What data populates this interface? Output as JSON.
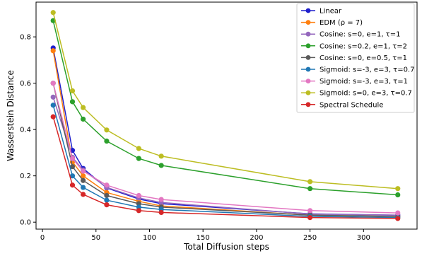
{
  "chart_data": {
    "type": "line",
    "title": "",
    "xlabel": "Total Diffusion steps",
    "ylabel": "Wasserstein Distance",
    "xlim": [
      -6,
      350
    ],
    "ylim": [
      -0.03,
      0.95
    ],
    "xticks": [
      0,
      50,
      100,
      150,
      200,
      250,
      300
    ],
    "yticks": [
      0.0,
      0.2,
      0.4,
      0.6,
      0.8
    ],
    "xtick_labels": [
      "0",
      "50",
      "100",
      "150",
      "200",
      "250",
      "300"
    ],
    "ytick_labels": [
      "0.0",
      "0.2",
      "0.4",
      "0.6",
      "0.8"
    ],
    "grid": false,
    "legend_position": "top-right",
    "series": [
      {
        "name": "Linear",
        "color": "#1f1fcc",
        "x": [
          10,
          28,
          38,
          60,
          90,
          111,
          250,
          332
        ],
        "y": [
          0.752,
          0.31,
          0.232,
          0.148,
          0.1,
          0.08,
          0.036,
          0.03
        ]
      },
      {
        "name": "EDM (ρ = 7)",
        "color": "#ff7f0e",
        "x": [
          10,
          28,
          38,
          60,
          90,
          111,
          250,
          332
        ],
        "y": [
          0.74,
          0.26,
          0.2,
          0.128,
          0.09,
          0.07,
          0.03,
          0.025
        ]
      },
      {
        "name": "Cosine: s=0, e=1, τ=1",
        "color": "#9467bd",
        "x": [
          10,
          28,
          38,
          60,
          90,
          111,
          250,
          332
        ],
        "y": [
          0.54,
          0.28,
          0.225,
          0.15,
          0.105,
          0.085,
          0.035,
          0.03
        ]
      },
      {
        "name": "Cosine: s=0.2, e=1, τ=2",
        "color": "#2ca02c",
        "x": [
          10,
          28,
          38,
          60,
          90,
          111,
          250,
          332
        ],
        "y": [
          0.87,
          0.52,
          0.445,
          0.35,
          0.275,
          0.245,
          0.145,
          0.118
        ]
      },
      {
        "name": "Cosine: s=0, e=0.5, τ=1",
        "color": "#5a5a5a",
        "x": [
          10,
          28,
          38,
          60,
          90,
          111,
          250,
          332
        ],
        "y": [
          0.6,
          0.24,
          0.18,
          0.115,
          0.08,
          0.065,
          0.03,
          0.025
        ]
      },
      {
        "name": "Sigmoid: s=-3, e=3, τ=0.7",
        "color": "#1f77b4",
        "x": [
          10,
          28,
          38,
          60,
          90,
          111,
          250,
          332
        ],
        "y": [
          0.505,
          0.2,
          0.15,
          0.095,
          0.065,
          0.055,
          0.025,
          0.02
        ]
      },
      {
        "name": "Sigmoid: s=-3, e=3, τ=1",
        "color": "#e377c2",
        "x": [
          10,
          28,
          38,
          60,
          90,
          111,
          250,
          332
        ],
        "y": [
          0.6,
          0.275,
          0.22,
          0.16,
          0.115,
          0.098,
          0.05,
          0.04
        ]
      },
      {
        "name": "Sigmoid: s=0, e=3, τ=0.7",
        "color": "#bcbd22",
        "x": [
          10,
          28,
          38,
          60,
          90,
          111,
          250,
          332
        ],
        "y": [
          0.905,
          0.567,
          0.495,
          0.398,
          0.318,
          0.285,
          0.175,
          0.145
        ]
      },
      {
        "name": "Spectral Schedule",
        "color": "#d62728",
        "x": [
          10,
          28,
          38,
          60,
          90,
          111,
          250,
          332
        ],
        "y": [
          0.455,
          0.16,
          0.12,
          0.075,
          0.05,
          0.042,
          0.02,
          0.016
        ]
      }
    ]
  }
}
